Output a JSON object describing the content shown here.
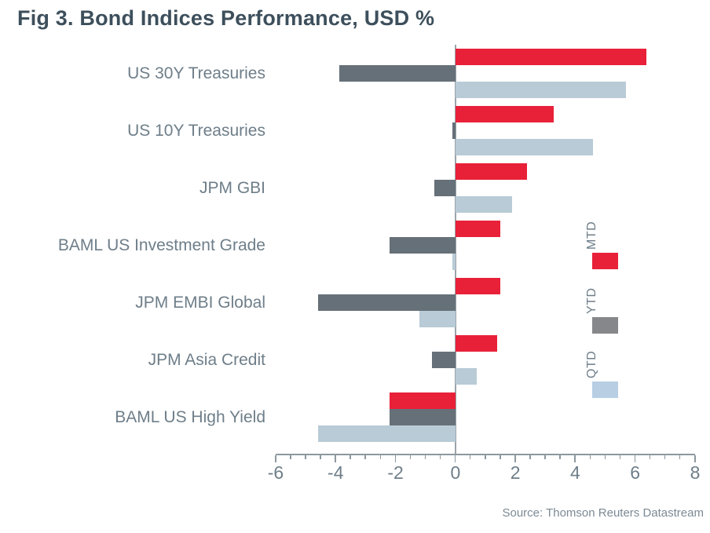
{
  "title": "Fig 3. Bond Indices Performance, USD %",
  "source": "Source: Thomson Reuters Datastream",
  "colors": {
    "mtd": "#E82139",
    "ytd": "#667078",
    "qtd": "#B8CBD6",
    "legend_ytd": "#85878A",
    "legend_qtd": "#B7CEE3",
    "axis": "#8D989F",
    "zero_line": "#9AA4AB",
    "title_text": "#3D4F5C",
    "label_text": "#6E7E89",
    "source_text": "#7C8A94"
  },
  "legend": [
    {
      "label": "MTD",
      "color_key": "mtd"
    },
    {
      "label": "YTD",
      "color_key": "legend_ytd"
    },
    {
      "label": "QTD",
      "color_key": "legend_qtd"
    }
  ],
  "chart_data": {
    "type": "bar",
    "orientation": "horizontal",
    "title": "Fig 3. Bond Indices Performance, USD %",
    "xlabel": "USD %",
    "ylabel": "",
    "categories": [
      "US 30Y Treasuries",
      "US 10Y Treasuries",
      "JPM GBI",
      "BAML US Investment Grade",
      "JPM EMBI Global",
      "JPM Asia Credit",
      "BAML US High Yield"
    ],
    "series": [
      {
        "name": "MTD",
        "values": [
          6.4,
          3.3,
          2.4,
          1.5,
          1.5,
          1.4,
          -2.2
        ]
      },
      {
        "name": "YTD",
        "values": [
          -3.9,
          -0.1,
          -0.7,
          -2.2,
          -4.6,
          -0.8,
          -2.2
        ]
      },
      {
        "name": "QTD",
        "values": [
          5.7,
          4.6,
          1.9,
          -0.1,
          -1.2,
          0.7,
          -4.6
        ]
      }
    ],
    "xlim": [
      -6,
      8
    ],
    "xticks": [
      -6,
      -4,
      -2,
      0,
      2,
      4,
      6,
      8
    ],
    "x_major_step": 2,
    "x_minor_step": 0.5,
    "grid": false,
    "legend_position": "right"
  }
}
